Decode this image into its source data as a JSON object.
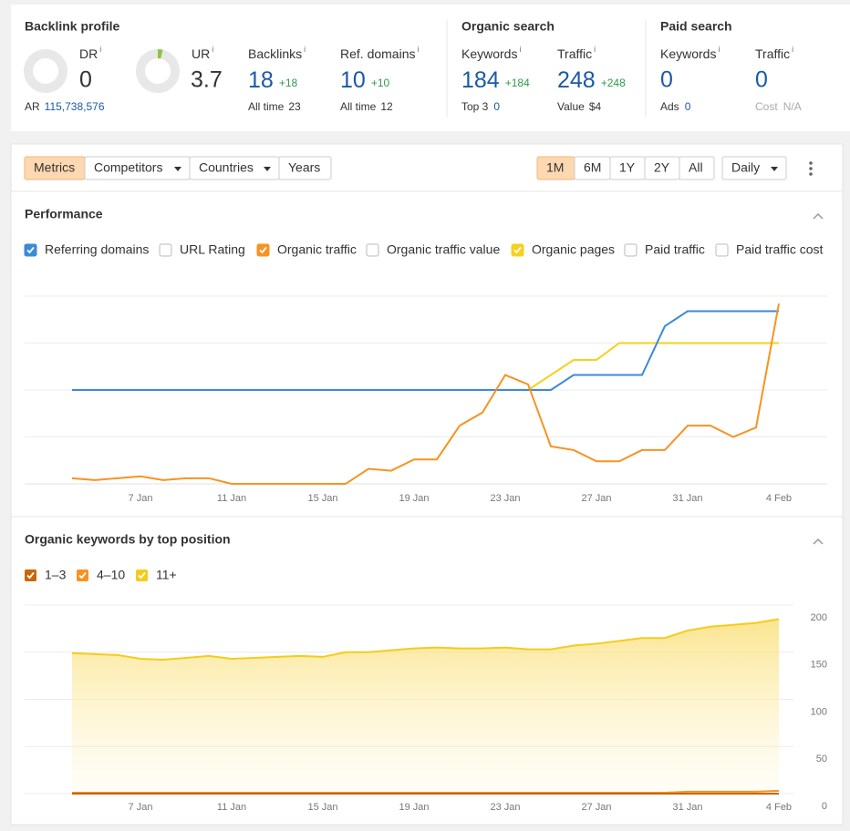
{
  "backlink_profile": {
    "title": "Backlink profile",
    "dr": {
      "label": "DR",
      "value": 0
    },
    "ur": {
      "label": "UR",
      "value": 3.7
    },
    "backlinks": {
      "label": "Backlinks",
      "value": 18,
      "change": "+18",
      "sub_label": "All time",
      "sub_value": 23
    },
    "ref_domains": {
      "label": "Ref. domains",
      "value": 10,
      "change": "+10",
      "sub_label": "All time",
      "sub_value": 12
    },
    "ar": {
      "label": "AR",
      "value": "115,738,576"
    }
  },
  "organic_search": {
    "title": "Organic search",
    "keywords": {
      "label": "Keywords",
      "value": 184,
      "change": "+184",
      "sub_label": "Top 3",
      "sub_value": 0
    },
    "traffic": {
      "label": "Traffic",
      "value": 248,
      "change": "+248",
      "sub_label": "Value",
      "sub_value": "$4"
    }
  },
  "paid_search": {
    "title": "Paid search",
    "keywords": {
      "label": "Keywords",
      "value": 0,
      "sub_label": "Ads",
      "sub_value": 0
    },
    "traffic": {
      "label": "Traffic",
      "value": 0,
      "sub_label": "Cost",
      "sub_value": "N/A"
    }
  },
  "info_icon": "i",
  "toolbar": {
    "tabs": [
      {
        "label": "Metrics",
        "active": true,
        "dropdown": false
      },
      {
        "label": "Competitors",
        "active": false,
        "dropdown": true
      },
      {
        "label": "Countries",
        "active": false,
        "dropdown": true
      },
      {
        "label": "Years",
        "active": false,
        "dropdown": false
      }
    ],
    "ranges": [
      {
        "label": "1M",
        "active": true
      },
      {
        "label": "6M",
        "active": false
      },
      {
        "label": "1Y",
        "active": false
      },
      {
        "label": "2Y",
        "active": false
      },
      {
        "label": "All",
        "active": false
      }
    ],
    "interval": "Daily"
  },
  "performance": {
    "title": "Performance",
    "type": "line",
    "ylim": [
      0,
      100
    ],
    "grid": true,
    "x": [
      null,
      null,
      null,
      "7 Jan",
      null,
      null,
      null,
      "11 Jan",
      null,
      null,
      null,
      "15 Jan",
      null,
      null,
      null,
      "19 Jan",
      null,
      null,
      null,
      "23 Jan",
      null,
      null,
      null,
      "27 Jan",
      null,
      null,
      null,
      "31 Jan",
      null,
      null,
      null,
      "4 Feb"
    ],
    "metrics": [
      {
        "name": "Referring domains",
        "checked": true,
        "color": "#3b8ad6",
        "values": [
          50,
          50,
          50,
          50,
          50,
          50,
          50,
          50,
          50,
          50,
          50,
          50,
          50,
          50,
          50,
          50,
          50,
          50,
          50,
          50,
          50,
          50,
          58,
          58,
          58,
          58,
          84,
          92,
          92,
          92,
          92,
          92
        ]
      },
      {
        "name": "URL Rating",
        "checked": false
      },
      {
        "name": "Organic traffic",
        "checked": true,
        "color": "#f79321",
        "values": [
          3,
          2,
          3,
          4,
          2,
          3,
          3,
          0,
          0,
          0,
          0,
          0,
          0,
          8,
          7,
          13,
          13,
          31,
          38,
          58,
          53,
          20,
          18,
          12,
          12,
          18,
          18,
          31,
          31,
          25,
          30,
          96
        ]
      },
      {
        "name": "Organic traffic value",
        "checked": false
      },
      {
        "name": "Organic pages",
        "checked": true,
        "color": "#f5d11f",
        "values": [
          50,
          50,
          50,
          50,
          50,
          50,
          50,
          50,
          50,
          50,
          50,
          50,
          50,
          50,
          50,
          50,
          50,
          50,
          50,
          50,
          50,
          58,
          66,
          66,
          75,
          75,
          75,
          75,
          75,
          75,
          75,
          75
        ]
      },
      {
        "name": "Paid traffic",
        "checked": false
      },
      {
        "name": "Paid traffic cost",
        "checked": false
      }
    ]
  },
  "organic_keywords": {
    "title": "Organic keywords by top position",
    "type": "area",
    "stacked": true,
    "ylim": [
      0,
      200
    ],
    "yticks": [
      0,
      50,
      100,
      150,
      200
    ],
    "grid": true,
    "x": [
      null,
      null,
      null,
      "7 Jan",
      null,
      null,
      null,
      "11 Jan",
      null,
      null,
      null,
      "15 Jan",
      null,
      null,
      null,
      "19 Jan",
      null,
      null,
      null,
      "23 Jan",
      null,
      null,
      null,
      "27 Jan",
      null,
      null,
      null,
      "31 Jan",
      null,
      null,
      null,
      "4 Feb"
    ],
    "series": [
      {
        "name": "1–3",
        "color": "#c7680c",
        "values": [
          0,
          0,
          0,
          0,
          0,
          0,
          0,
          0,
          0,
          0,
          0,
          0,
          0,
          0,
          0,
          0,
          0,
          0,
          0,
          0,
          0,
          0,
          0,
          0,
          0,
          0,
          0,
          0,
          0,
          0,
          0,
          0
        ]
      },
      {
        "name": "4–10",
        "color": "#f79321",
        "values": [
          1,
          1,
          1,
          1,
          1,
          1,
          1,
          1,
          1,
          1,
          1,
          1,
          1,
          1,
          1,
          1,
          1,
          1,
          1,
          1,
          1,
          1,
          1,
          1,
          1,
          1,
          1,
          2,
          2,
          2,
          2,
          3
        ]
      },
      {
        "name": "11+",
        "color": "#f5cc1b",
        "values": [
          148,
          147,
          146,
          142,
          141,
          143,
          145,
          142,
          143,
          144,
          145,
          144,
          149,
          149,
          151,
          153,
          154,
          153,
          153,
          154,
          152,
          152,
          156,
          158,
          161,
          164,
          164,
          171,
          175,
          177,
          179,
          182
        ]
      }
    ]
  }
}
